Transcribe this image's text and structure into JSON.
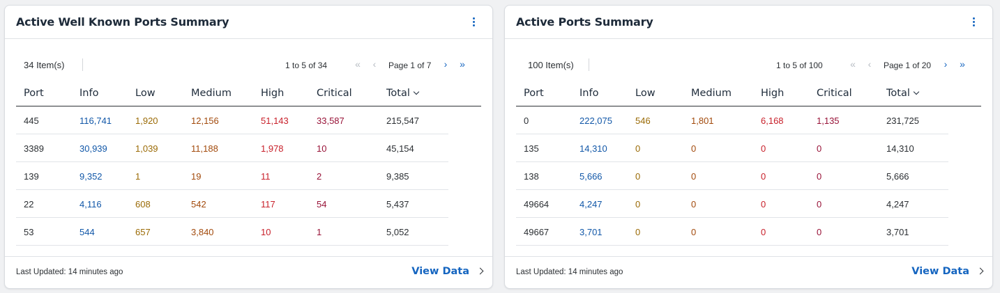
{
  "cards": [
    {
      "title": "Active Well Known Ports Summary",
      "items_count": "34 Item(s)",
      "range": "1 to 5 of 34",
      "page": "Page 1 of 7",
      "columns": [
        "Port",
        "Info",
        "Low",
        "Medium",
        "High",
        "Critical",
        "Total"
      ],
      "rows": [
        [
          "445",
          "116,741",
          "1,920",
          "12,156",
          "51,143",
          "33,587",
          "215,547"
        ],
        [
          "3389",
          "30,939",
          "1,039",
          "11,188",
          "1,978",
          "10",
          "45,154"
        ],
        [
          "139",
          "9,352",
          "1",
          "19",
          "11",
          "2",
          "9,385"
        ],
        [
          "22",
          "4,116",
          "608",
          "542",
          "117",
          "54",
          "5,437"
        ],
        [
          "53",
          "544",
          "657",
          "3,840",
          "10",
          "1",
          "5,052"
        ]
      ],
      "last_updated": "Last Updated: 14 minutes ago",
      "view_data": "View Data"
    },
    {
      "title": "Active Ports Summary",
      "items_count": "100 Item(s)",
      "range": "1 to 5 of 100",
      "page": "Page 1 of 20",
      "columns": [
        "Port",
        "Info",
        "Low",
        "Medium",
        "High",
        "Critical",
        "Total"
      ],
      "rows": [
        [
          "0",
          "222,075",
          "546",
          "1,801",
          "6,168",
          "1,135",
          "231,725"
        ],
        [
          "135",
          "14,310",
          "0",
          "0",
          "0",
          "0",
          "14,310"
        ],
        [
          "138",
          "5,666",
          "0",
          "0",
          "0",
          "0",
          "5,666"
        ],
        [
          "49664",
          "4,247",
          "0",
          "0",
          "0",
          "0",
          "4,247"
        ],
        [
          "49667",
          "3,701",
          "0",
          "0",
          "0",
          "0",
          "3,701"
        ]
      ],
      "last_updated": "Last Updated: 14 minutes ago",
      "view_data": "View Data"
    }
  ],
  "icons": {
    "first": "«",
    "prev": "‹",
    "next": "›",
    "last": "»"
  },
  "colors": {
    "accent": "#1565c0",
    "info": "#1157a8",
    "low": "#9a6a05",
    "medium": "#a24a0c",
    "high": "#c8202a",
    "critical": "#981338"
  }
}
